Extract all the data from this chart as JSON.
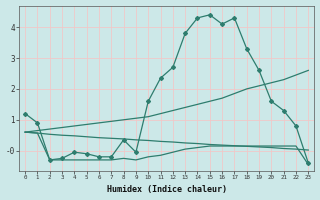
{
  "x": [
    0,
    1,
    2,
    3,
    4,
    5,
    6,
    7,
    8,
    9,
    10,
    11,
    12,
    13,
    14,
    15,
    16,
    17,
    18,
    19,
    20,
    21,
    22,
    23
  ],
  "y_main": [
    1.2,
    0.9,
    -0.3,
    -0.25,
    -0.05,
    -0.1,
    -0.2,
    -0.2,
    0.35,
    -0.05,
    1.6,
    2.35,
    2.7,
    3.8,
    4.3,
    4.4,
    4.1,
    4.3,
    3.3,
    2.6,
    1.6,
    1.3,
    0.8,
    -0.4
  ],
  "y_upper_line": [
    0.6,
    0.65,
    0.7,
    0.75,
    0.8,
    0.85,
    0.9,
    0.95,
    1.0,
    1.05,
    1.1,
    1.2,
    1.3,
    1.4,
    1.5,
    1.6,
    1.7,
    1.85,
    2.0,
    2.1,
    2.2,
    2.3,
    2.45,
    2.6
  ],
  "y_lower_line": [
    0.6,
    0.57,
    0.53,
    0.5,
    0.48,
    0.45,
    0.42,
    0.4,
    0.38,
    0.35,
    0.33,
    0.3,
    0.28,
    0.25,
    0.23,
    0.2,
    0.18,
    0.16,
    0.14,
    0.12,
    0.1,
    0.07,
    0.05,
    0.02
  ],
  "y_flat_line": [
    0.6,
    0.57,
    -0.3,
    -0.3,
    -0.3,
    -0.3,
    -0.3,
    -0.3,
    -0.25,
    -0.3,
    -0.2,
    -0.15,
    -0.05,
    0.05,
    0.1,
    0.15,
    0.15,
    0.15,
    0.15,
    0.15,
    0.15,
    0.15,
    0.15,
    -0.45
  ],
  "line_color": "#2e7d6e",
  "bg_color": "#cce8e8",
  "grid_color": "#f0c8c8",
  "xlabel": "Humidex (Indice chaleur)",
  "ylim": [
    -0.65,
    4.7
  ],
  "xlim": [
    -0.5,
    23.5
  ],
  "yticks": [
    0,
    1,
    2,
    3,
    4
  ],
  "ytick_labels": [
    "-0",
    "1",
    "2",
    "3",
    "4"
  ]
}
